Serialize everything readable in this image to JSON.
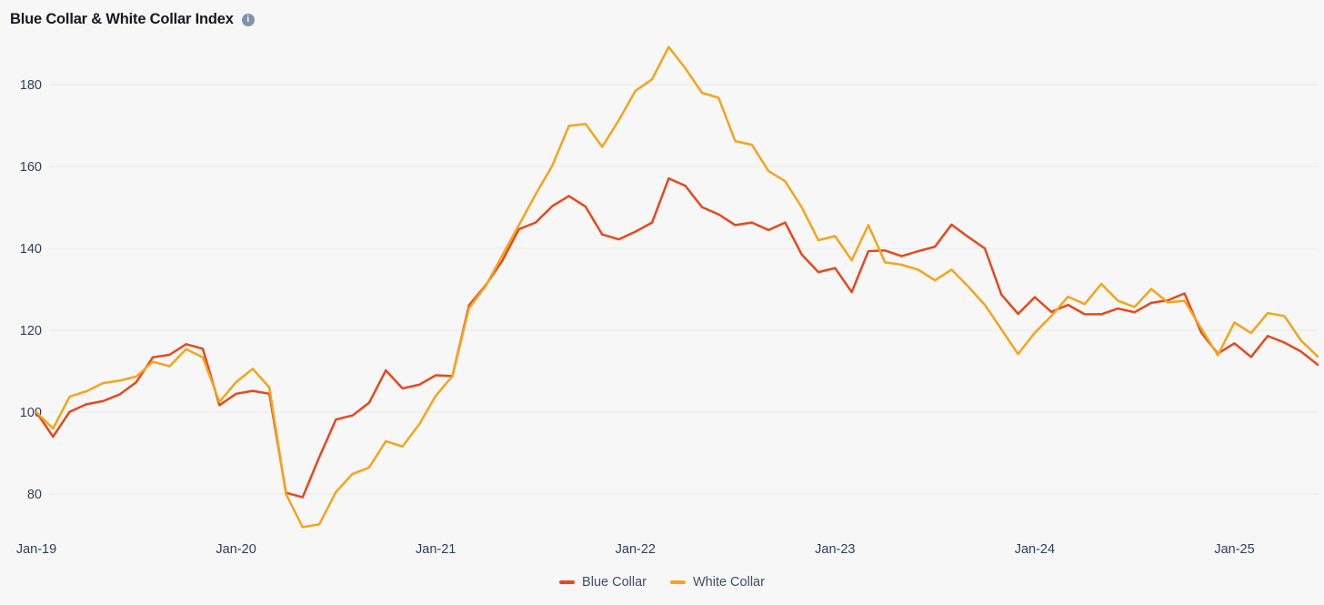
{
  "header": {
    "title": "Blue Collar & White Collar Index",
    "info_glyph": "i"
  },
  "legend": {
    "items": [
      "Blue Collar",
      "White Collar"
    ]
  },
  "chart_data": {
    "type": "line",
    "title": "Blue Collar & White Collar Index",
    "x_tick_labels": [
      "Jan-19",
      "Jan-20",
      "Jan-21",
      "Jan-22",
      "Jan-23",
      "Jan-24",
      "Jan-25"
    ],
    "x_tick_month_index": [
      0,
      12,
      24,
      36,
      48,
      60,
      72
    ],
    "y_ticks": [
      80,
      100,
      120,
      140,
      160,
      180
    ],
    "ylim": [
      68,
      192
    ],
    "grid": "horizontal-only",
    "legend_position": "bottom-center",
    "x_months": [
      "Jan-19",
      "Feb-19",
      "Mar-19",
      "Apr-19",
      "May-19",
      "Jun-19",
      "Jul-19",
      "Aug-19",
      "Sep-19",
      "Oct-19",
      "Nov-19",
      "Dec-19",
      "Jan-20",
      "Feb-20",
      "Mar-20",
      "Apr-20",
      "May-20",
      "Jun-20",
      "Jul-20",
      "Aug-20",
      "Sep-20",
      "Oct-20",
      "Nov-20",
      "Dec-20",
      "Jan-21",
      "Feb-21",
      "Mar-21",
      "Apr-21",
      "May-21",
      "Jun-21",
      "Jul-21",
      "Aug-21",
      "Sep-21",
      "Oct-21",
      "Nov-21",
      "Dec-21",
      "Jan-22",
      "Feb-22",
      "Mar-22",
      "Apr-22",
      "May-22",
      "Jun-22",
      "Jul-22",
      "Aug-22",
      "Sep-22",
      "Oct-22",
      "Nov-22",
      "Dec-22",
      "Jan-23",
      "Feb-23",
      "Mar-23",
      "Apr-23",
      "May-23",
      "Jun-23",
      "Jul-23",
      "Aug-23",
      "Sep-23",
      "Oct-23",
      "Nov-23",
      "Dec-23",
      "Jan-24",
      "Feb-24",
      "Mar-24",
      "Apr-24",
      "May-24",
      "Jun-24",
      "Jul-24",
      "Aug-24",
      "Sep-24",
      "Oct-24",
      "Nov-24",
      "Dec-24",
      "Jan-25",
      "Feb-25",
      "Mar-25",
      "Apr-25",
      "May-25",
      "Jun-25"
    ],
    "series": [
      {
        "name": "Blue Collar",
        "color": "#e8481b",
        "values": [
          100,
          94,
          100.1,
          101.9,
          102.7,
          104.3,
          107.3,
          113.4,
          114,
          116.6,
          115.5,
          101.7,
          104.5,
          105.2,
          104.5,
          80.3,
          79.2,
          89,
          98.2,
          99.2,
          102.3,
          110.2,
          105.8,
          106.7,
          109,
          108.8,
          126.1,
          131,
          137,
          144.7,
          146.3,
          150.3,
          152.8,
          150.2,
          143.4,
          142.2,
          144.1,
          146.3,
          157.1,
          155.3,
          150.1,
          148.3,
          145.7,
          146.3,
          144.5,
          146.3,
          138.5,
          134.2,
          135.2,
          129.3,
          139.3,
          139.5,
          138.1,
          139.3,
          140.4,
          145.8,
          142.8,
          140,
          128.7,
          124,
          128.1,
          124.5,
          126.2,
          123.9,
          123.9,
          125.3,
          124.4,
          126.7,
          127.3,
          129,
          119.5,
          114.3,
          116.8,
          113.5,
          118.6,
          117,
          114.8,
          111.6
        ]
      },
      {
        "name": "White Collar",
        "color": "#f5a41b",
        "values": [
          100,
          96,
          103.8,
          105.1,
          107.1,
          107.7,
          108.7,
          112.3,
          111.2,
          115.4,
          113.4,
          102.5,
          107.3,
          110.6,
          106,
          80,
          71.9,
          72.6,
          80.5,
          84.9,
          86.5,
          92.9,
          91.6,
          97,
          104,
          108.8,
          125.4,
          130.8,
          138.3,
          145.7,
          153.2,
          160.2,
          169.9,
          170.4,
          164.8,
          171.3,
          178.5,
          181.3,
          189.2,
          184,
          178,
          176.8,
          166.2,
          165.3,
          158.9,
          156.4,
          150,
          142,
          143,
          137.1,
          145.7,
          136.6,
          136,
          134.8,
          132.2,
          134.8,
          130.7,
          126.2,
          120.2,
          114.2,
          119.4,
          123.5,
          128.2,
          126.4,
          131.3,
          127.2,
          125.7,
          130.1,
          126.8,
          127.2,
          120.5,
          113.9,
          121.9,
          119.3,
          124.2,
          123.5,
          117.5,
          113.6
        ]
      }
    ]
  },
  "colors": {
    "background": "#f7f7f7",
    "gridline": "#e8e8e8",
    "axis_label": "#2e3e5a",
    "legend_text": "#3d4e6b",
    "title_text": "#16191f",
    "info_icon_bg": "#8292aa"
  }
}
